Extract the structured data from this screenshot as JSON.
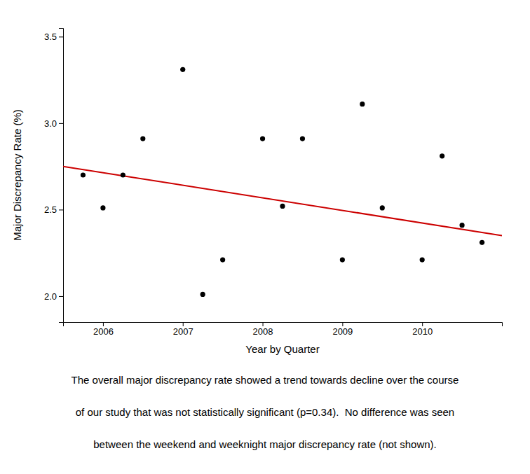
{
  "chart_data": {
    "type": "scatter",
    "xlabel": "Year by Quarter",
    "ylabel": "Major Discrepancy Rate (%)",
    "series": [
      {
        "type": "scatter",
        "color": "#000000",
        "x": [
          2005.75,
          2006.0,
          2006.25,
          2006.5,
          2007.0,
          2007.25,
          2007.5,
          2008.0,
          2008.25,
          2008.5,
          2009.0,
          2009.25,
          2009.5,
          2010.0,
          2010.25,
          2010.5,
          2010.75
        ],
        "values": [
          2.7,
          2.51,
          2.7,
          2.91,
          3.31,
          2.01,
          2.21,
          2.91,
          2.52,
          2.91,
          2.21,
          3.11,
          2.51,
          2.21,
          2.81,
          2.41,
          2.31
        ]
      },
      {
        "type": "line",
        "color": "#cc0000",
        "x": [
          2005.5,
          2011.0
        ],
        "values": [
          2.75,
          2.35
        ]
      }
    ],
    "xlim": [
      2005.5,
      2011.0
    ],
    "ylim": [
      1.85,
      3.55
    ],
    "xticks": [
      2006,
      2007,
      2008,
      2009,
      2010
    ],
    "yticks": [
      {
        "value": 2.0,
        "label": "2.0"
      },
      2.5,
      {
        "value": 3.0,
        "label": "3.0"
      },
      3.5
    ],
    "grid": false,
    "annotations": [
      "The overall major discrepancy rate showed a trend towards decline over the course",
      "of our study that was not statistically significant (p=0.34).  No difference was seen",
      "between the weekend and weeknight major discrepancy rate (not shown)."
    ]
  }
}
